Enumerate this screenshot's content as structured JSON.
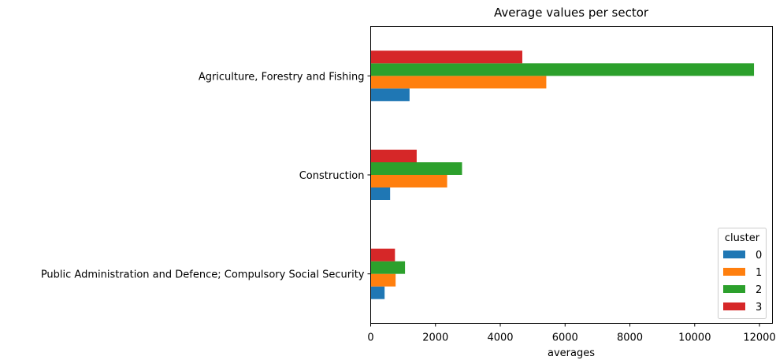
{
  "chart_data": {
    "type": "bar",
    "orientation": "horizontal",
    "title": "Average values per sector",
    "xlabel": "averages",
    "ylabel": "",
    "xlim": [
      0,
      12400
    ],
    "xticks": [
      0,
      2000,
      4000,
      6000,
      8000,
      10000,
      12000
    ],
    "categories": [
      "Agriculture, Forestry and Fishing",
      "Construction",
      "Public Administration and Defence; Compulsory Social Security"
    ],
    "legend": {
      "title": "cluster",
      "position": "lower right"
    },
    "series": [
      {
        "name": "0",
        "color": "#1f77b4",
        "values": [
          1200,
          600,
          430
        ]
      },
      {
        "name": "1",
        "color": "#ff7f0e",
        "values": [
          5420,
          2360,
          770
        ]
      },
      {
        "name": "2",
        "color": "#2ca02c",
        "values": [
          11830,
          2820,
          1060
        ]
      },
      {
        "name": "3",
        "color": "#d62728",
        "values": [
          4680,
          1420,
          750
        ]
      }
    ],
    "grid": false
  }
}
